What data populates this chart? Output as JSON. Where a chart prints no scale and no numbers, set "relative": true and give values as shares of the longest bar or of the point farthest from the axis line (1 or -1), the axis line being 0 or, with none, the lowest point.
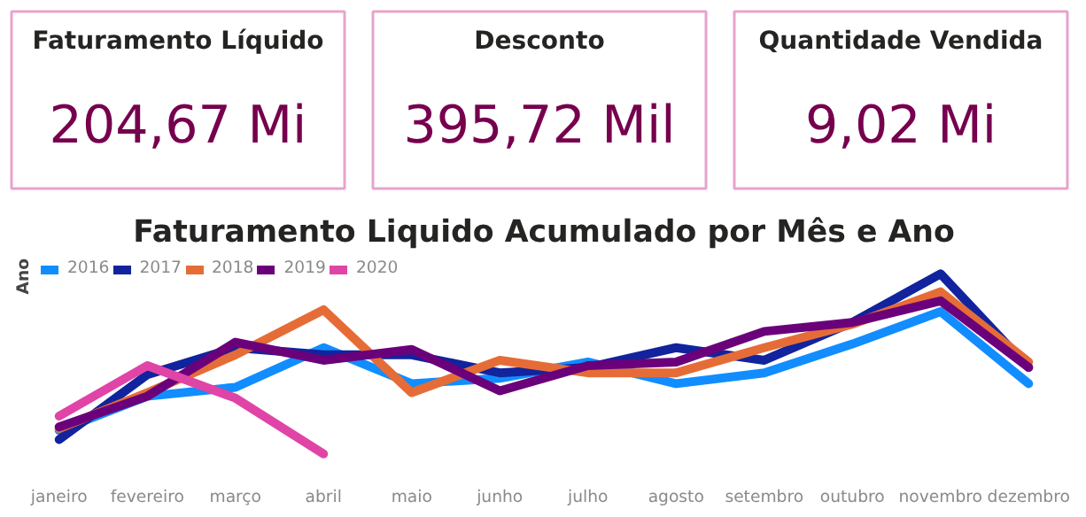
{
  "chart_data": [
    {
      "type": "other",
      "title": "Faturamento Líquido",
      "annotations": [
        "204,67 Mi"
      ]
    },
    {
      "type": "other",
      "title": "Desconto",
      "annotations": [
        "395,72 Mil"
      ]
    },
    {
      "type": "other",
      "title": "Quantidade Vendida",
      "annotations": [
        "9,02 Mi"
      ]
    },
    {
      "type": "line",
      "title": "Faturamento Liquido Acumulado por Mês e Ano",
      "legend_title": "Ano",
      "legend": "top left",
      "relative": true,
      "grid": false,
      "marker": "none",
      "line_style": "solid",
      "categories": [
        "janeiro",
        "fevereiro",
        "março",
        "abril",
        "maio",
        "junho",
        "julho",
        "agosto",
        "setembro",
        "outubro",
        "novembro",
        "dezembro"
      ],
      "series": [
        {
          "name": "2016",
          "color": "#118dff",
          "values": [
            0.13,
            0.32,
            0.37,
            0.59,
            0.39,
            0.42,
            0.51,
            0.39,
            0.45,
            0.61,
            0.79,
            0.39
          ]
        },
        {
          "name": "2017",
          "color": "#12239e",
          "values": [
            0.08,
            0.44,
            0.59,
            0.55,
            0.55,
            0.45,
            0.48,
            0.59,
            0.52,
            0.73,
            1.0,
            0.48
          ]
        },
        {
          "name": "2018",
          "color": "#e66c37",
          "values": [
            0.14,
            0.34,
            0.55,
            0.8,
            0.34,
            0.52,
            0.45,
            0.45,
            0.59,
            0.72,
            0.9,
            0.51
          ]
        },
        {
          "name": "2019",
          "color": "#6b007b",
          "values": [
            0.15,
            0.32,
            0.62,
            0.52,
            0.58,
            0.35,
            0.49,
            0.51,
            0.68,
            0.73,
            0.85,
            0.48
          ]
        },
        {
          "name": "2020",
          "color": "#e044a7",
          "values": [
            0.21,
            0.49,
            0.31,
            0.0,
            null,
            null,
            null,
            null,
            null,
            null,
            null,
            null
          ]
        }
      ]
    }
  ]
}
